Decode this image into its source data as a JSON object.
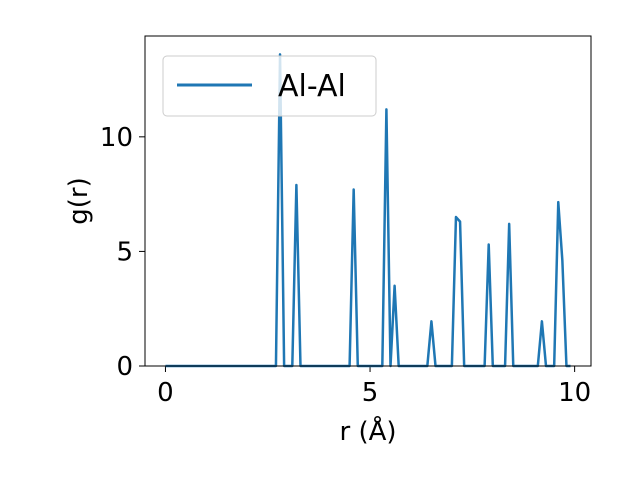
{
  "chart_data": {
    "type": "line",
    "xlabel": "r (Å)",
    "ylabel": "g(r)",
    "xlim": [
      -0.5,
      10.4
    ],
    "ylim": [
      0,
      14.4
    ],
    "xticks": [
      0,
      5,
      10
    ],
    "yticks": [
      0,
      5,
      10
    ],
    "grid": false,
    "legend_position": "top-left",
    "series": [
      {
        "name": "Al-Al",
        "color": "#1f77b4",
        "x": [
          0.0,
          0.1,
          0.2,
          0.3,
          0.4,
          0.5,
          0.6,
          0.7,
          0.8,
          0.9,
          1.0,
          1.1,
          1.2,
          1.3,
          1.4,
          1.5,
          1.6,
          1.7,
          1.8,
          1.9,
          2.0,
          2.1,
          2.2,
          2.3,
          2.4,
          2.5,
          2.6,
          2.7,
          2.8,
          2.9,
          3.0,
          3.1,
          3.2,
          3.3,
          3.4,
          3.5,
          3.6,
          3.7,
          3.8,
          3.9,
          4.0,
          4.1,
          4.2,
          4.3,
          4.4,
          4.5,
          4.6,
          4.7,
          4.8,
          4.9,
          5.0,
          5.1,
          5.2,
          5.3,
          5.4,
          5.5,
          5.6,
          5.7,
          5.8,
          5.9,
          6.0,
          6.1,
          6.2,
          6.3,
          6.4,
          6.5,
          6.6,
          6.7,
          6.8,
          6.9,
          7.0,
          7.1,
          7.2,
          7.3,
          7.4,
          7.5,
          7.6,
          7.7,
          7.8,
          7.9,
          8.0,
          8.1,
          8.2,
          8.3,
          8.4,
          8.5,
          8.6,
          8.7,
          8.8,
          8.9,
          9.0,
          9.1,
          9.2,
          9.3,
          9.4,
          9.5,
          9.6,
          9.7,
          9.8,
          9.9
        ],
        "values": [
          0,
          0,
          0,
          0,
          0,
          0,
          0,
          0,
          0,
          0,
          0,
          0,
          0,
          0,
          0,
          0,
          0,
          0,
          0,
          0,
          0,
          0,
          0,
          0,
          0,
          0,
          0,
          0,
          13.6,
          0,
          0,
          0,
          7.9,
          0,
          0,
          0,
          0,
          0,
          0,
          0,
          0,
          0,
          0,
          0,
          0,
          0,
          7.7,
          0,
          0,
          0,
          0,
          0,
          0,
          0,
          11.2,
          0,
          3.5,
          0,
          0,
          0,
          0,
          0,
          0,
          0,
          0,
          1.95,
          0,
          0,
          0,
          0,
          0,
          6.5,
          6.3,
          0,
          0,
          0,
          0,
          0,
          0,
          5.3,
          0,
          0,
          0,
          0,
          6.2,
          0,
          0,
          0,
          0,
          0,
          0,
          0,
          1.95,
          0,
          0,
          0,
          7.15,
          4.6,
          0,
          0
        ]
      }
    ]
  }
}
